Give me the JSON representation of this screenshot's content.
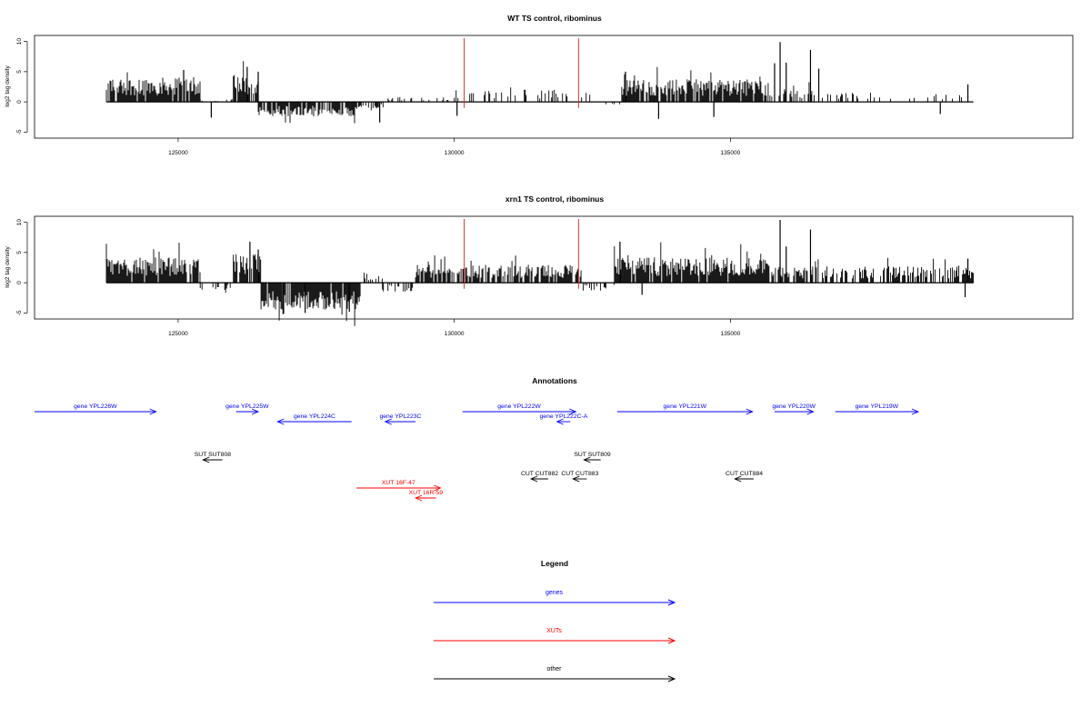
{
  "chart_data": [
    {
      "type": "bar",
      "title": "WT TS control, ribominus",
      "ylabel": "log2 tag density",
      "xlabel": "",
      "xlim": [
        122400,
        141200
      ],
      "ylim": [
        -6,
        11
      ],
      "xticks": [
        125000,
        130000,
        135000
      ],
      "xtick_labels": [
        "125000",
        "130000",
        "135000"
      ],
      "yticks": [
        -5,
        0,
        5,
        10
      ],
      "ytick_labels": [
        "-5",
        "0",
        "5",
        "10"
      ],
      "data_range": [
        123700,
        139400
      ],
      "markers": [
        130180,
        132250
      ],
      "marker_color": "#e41a1c",
      "segments": [
        {
          "start": 123700,
          "end": 125400,
          "level": 2.7,
          "sign": 1,
          "density": 0.85
        },
        {
          "start": 125400,
          "end": 126000,
          "level": 0.3,
          "sign": 1,
          "density": 0.25
        },
        {
          "start": 126000,
          "end": 126450,
          "level": 3.0,
          "sign": 1,
          "density": 0.8
        },
        {
          "start": 126450,
          "end": 128200,
          "level": -1.6,
          "sign": -1,
          "density": 0.85
        },
        {
          "start": 128200,
          "end": 128800,
          "level": -0.9,
          "sign": -1,
          "density": 0.35
        },
        {
          "start": 128800,
          "end": 130000,
          "level": 0.6,
          "sign": 1,
          "density": 0.2
        },
        {
          "start": 130000,
          "end": 132600,
          "level": 1.4,
          "sign": 1,
          "density": 0.25
        },
        {
          "start": 132600,
          "end": 133000,
          "level": -0.4,
          "sign": -1,
          "density": 0.15
        },
        {
          "start": 133000,
          "end": 135700,
          "level": 2.5,
          "sign": 1,
          "density": 0.85
        },
        {
          "start": 135700,
          "end": 136500,
          "level": 1.5,
          "sign": 1,
          "density": 0.45
        },
        {
          "start": 136500,
          "end": 139400,
          "level": 1.0,
          "sign": 1,
          "density": 0.2
        }
      ],
      "spikes": [
        {
          "x": 125100,
          "y": 5.3
        },
        {
          "x": 125600,
          "y": -2.6
        },
        {
          "x": 126250,
          "y": 5.8
        },
        {
          "x": 126450,
          "y": 5.0
        },
        {
          "x": 128650,
          "y": -3.4
        },
        {
          "x": 130050,
          "y": -2.3
        },
        {
          "x": 133100,
          "y": 5.0
        },
        {
          "x": 133700,
          "y": -2.8
        },
        {
          "x": 134700,
          "y": -2.5
        },
        {
          "x": 135800,
          "y": 6.4
        },
        {
          "x": 135900,
          "y": 9.9
        },
        {
          "x": 136010,
          "y": 6.5
        },
        {
          "x": 136450,
          "y": 8.6
        },
        {
          "x": 136600,
          "y": 5.5
        },
        {
          "x": 138800,
          "y": -2.0
        },
        {
          "x": 139300,
          "y": 2.9
        }
      ]
    },
    {
      "type": "bar",
      "title": "xrn1 TS control, ribominus",
      "ylabel": "log2 tag density",
      "xlabel": "",
      "xlim": [
        122400,
        141200
      ],
      "ylim": [
        -6,
        11
      ],
      "xticks": [
        125000,
        130000,
        135000
      ],
      "xtick_labels": [
        "125000",
        "130000",
        "135000"
      ],
      "yticks": [
        -5,
        0,
        5,
        10
      ],
      "ytick_labels": [
        "-5",
        "0",
        "5",
        "10"
      ],
      "data_range": [
        123700,
        139400
      ],
      "markers": [
        130180,
        132250
      ],
      "marker_color": "#e41a1c",
      "segments": [
        {
          "start": 123700,
          "end": 125400,
          "level": 2.8,
          "sign": 1,
          "density": 0.9
        },
        {
          "start": 125400,
          "end": 126000,
          "level": -0.8,
          "sign": -1,
          "density": 0.25
        },
        {
          "start": 126000,
          "end": 126500,
          "level": 3.2,
          "sign": 1,
          "density": 0.8
        },
        {
          "start": 126500,
          "end": 128300,
          "level": -3.0,
          "sign": -1,
          "density": 0.95
        },
        {
          "start": 128300,
          "end": 128700,
          "level": 1.0,
          "sign": 1,
          "density": 0.4
        },
        {
          "start": 128700,
          "end": 129300,
          "level": -1.0,
          "sign": -1,
          "density": 0.5
        },
        {
          "start": 129300,
          "end": 132300,
          "level": 2.0,
          "sign": 1,
          "density": 0.7
        },
        {
          "start": 132300,
          "end": 132900,
          "level": -0.9,
          "sign": -1,
          "density": 0.3
        },
        {
          "start": 132900,
          "end": 135700,
          "level": 2.8,
          "sign": 1,
          "density": 0.95
        },
        {
          "start": 135700,
          "end": 136600,
          "level": 1.8,
          "sign": 1,
          "density": 0.55
        },
        {
          "start": 136600,
          "end": 139400,
          "level": 1.8,
          "sign": 1,
          "density": 0.6
        }
      ],
      "spikes": [
        {
          "x": 126300,
          "y": 6.8
        },
        {
          "x": 126450,
          "y": 5.5
        },
        {
          "x": 126900,
          "y": -5.2
        },
        {
          "x": 127300,
          "y": -5.0
        },
        {
          "x": 128100,
          "y": -4.8
        },
        {
          "x": 133000,
          "y": 6.8
        },
        {
          "x": 133400,
          "y": -2.0
        },
        {
          "x": 135900,
          "y": 10.4
        },
        {
          "x": 136010,
          "y": 6.0
        },
        {
          "x": 136450,
          "y": 8.8
        },
        {
          "x": 139300,
          "y": 4.0
        },
        {
          "x": 139250,
          "y": -2.4
        }
      ]
    }
  ],
  "annotations": {
    "title": "Annotations",
    "items": [
      {
        "label": "gene YPL226W",
        "kind": "gene",
        "start": 122400,
        "end": 124600,
        "dir": "right",
        "row": 0
      },
      {
        "label": "gene YPL225W",
        "kind": "gene",
        "start": 126050,
        "end": 126450,
        "dir": "right",
        "row": 0
      },
      {
        "label": "gene YPL224C",
        "kind": "gene",
        "start": 126800,
        "end": 128140,
        "dir": "left",
        "row": 1
      },
      {
        "label": "gene YPL223C",
        "kind": "gene",
        "start": 128750,
        "end": 129300,
        "dir": "left",
        "row": 1
      },
      {
        "label": "gene YPL222W",
        "kind": "gene",
        "start": 130150,
        "end": 132200,
        "dir": "right",
        "row": 0
      },
      {
        "label": "gene YPL222C-A",
        "kind": "gene",
        "start": 131860,
        "end": 132100,
        "dir": "left",
        "row": 1
      },
      {
        "label": "gene YPL221W",
        "kind": "gene",
        "start": 132950,
        "end": 135400,
        "dir": "right",
        "row": 0
      },
      {
        "label": "gene YPL220W",
        "kind": "gene",
        "start": 135800,
        "end": 136500,
        "dir": "right",
        "row": 0
      },
      {
        "label": "gene YPL219W",
        "kind": "gene",
        "start": 136900,
        "end": 138400,
        "dir": "right",
        "row": 0
      },
      {
        "label": "SUT SUT808",
        "kind": "other",
        "start": 125450,
        "end": 125800,
        "dir": "left",
        "row": 4
      },
      {
        "label": "SUT SUT809",
        "kind": "other",
        "start": 132350,
        "end": 132650,
        "dir": "left",
        "row": 4
      },
      {
        "label": "CUT CUT882",
        "kind": "other",
        "start": 131390,
        "end": 131700,
        "dir": "left",
        "row": 5
      },
      {
        "label": "CUT CUT883",
        "kind": "other",
        "start": 132150,
        "end": 132400,
        "dir": "left",
        "row": 5
      },
      {
        "label": "CUT CUT884",
        "kind": "other",
        "start": 135080,
        "end": 135420,
        "dir": "left",
        "row": 5
      },
      {
        "label": "XUT 16F-47",
        "kind": "xut",
        "start": 128230,
        "end": 129750,
        "dir": "right",
        "row": 6
      },
      {
        "label": "XUT 16R-59",
        "kind": "xut",
        "start": 129300,
        "end": 129670,
        "dir": "left",
        "row": 7
      }
    ]
  },
  "legend": {
    "title": "Legend",
    "entries": [
      {
        "label": "genes",
        "kind": "gene"
      },
      {
        "label": "XUTs",
        "kind": "xut"
      },
      {
        "label": "other",
        "kind": "other"
      }
    ]
  },
  "colors": {
    "gene": "#0000ff",
    "xut": "#ff0000",
    "other": "#000000",
    "marker": "#e41a1c"
  }
}
